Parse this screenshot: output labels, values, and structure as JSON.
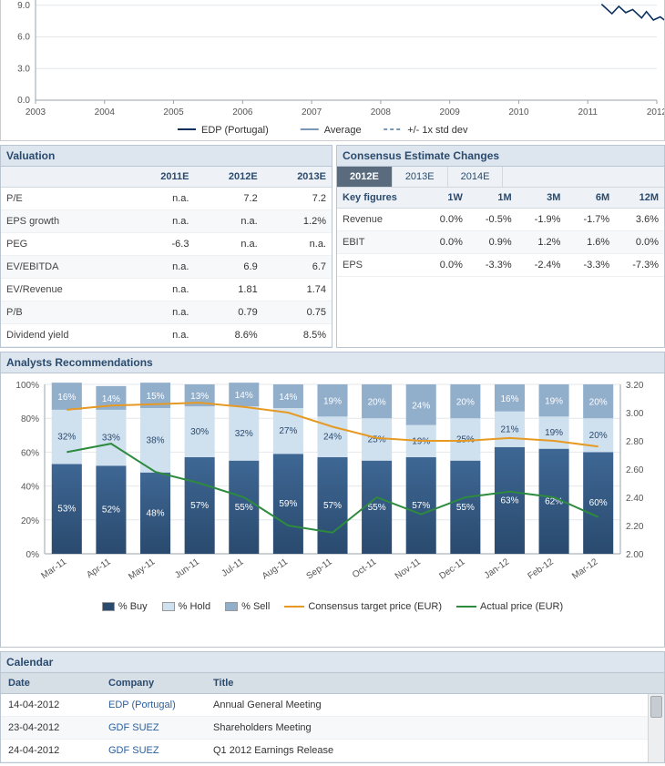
{
  "top_chart": {
    "type": "line",
    "ylim": [
      0,
      9.5
    ],
    "yticks": [
      0.0,
      3.0,
      6.0,
      9.0
    ],
    "xticks": [
      "2003",
      "2004",
      "2005",
      "2006",
      "2007",
      "2008",
      "2009",
      "2010",
      "2011",
      "2012"
    ],
    "background_color": "#ffffff",
    "grid_color": "#e4e7ea",
    "axis_color": "#9aa3ac",
    "text_color": "#555555",
    "series": [
      {
        "name": "EDP (Portugal)",
        "color": "#0b2f5c",
        "style": "solid",
        "points": [
          [
            8.2,
            9.1
          ],
          [
            8.35,
            8.2
          ],
          [
            8.45,
            8.9
          ],
          [
            8.55,
            8.3
          ],
          [
            8.65,
            8.6
          ],
          [
            8.78,
            7.8
          ],
          [
            8.85,
            8.4
          ],
          [
            8.95,
            7.6
          ],
          [
            9.05,
            7.9
          ],
          [
            9.15,
            7.4
          ],
          [
            9.25,
            7.7
          ],
          [
            9.35,
            7.2
          ],
          [
            9.45,
            7.7
          ],
          [
            9.55,
            7.2
          ],
          [
            9.62,
            7.4
          ],
          [
            9.72,
            7.0
          ],
          [
            9.82,
            7.4
          ],
          [
            9.9,
            7.1
          ],
          [
            9.98,
            7.3
          ]
        ]
      }
    ],
    "legend": [
      {
        "label": "EDP (Portugal)",
        "color": "#0b2f5c",
        "style": "solid"
      },
      {
        "label": "Average",
        "color": "#7a97b8",
        "style": "solid"
      },
      {
        "label": "+/- 1x std dev",
        "color": "#7a97b8",
        "style": "dash"
      }
    ]
  },
  "valuation": {
    "title": "Valuation",
    "columns": [
      "",
      "2011E",
      "2012E",
      "2013E"
    ],
    "rows": [
      [
        "P/E",
        "n.a.",
        "7.2",
        "7.2"
      ],
      [
        "EPS growth",
        "n.a.",
        "n.a.",
        "1.2%"
      ],
      [
        "PEG",
        "-6.3",
        "n.a.",
        "n.a."
      ],
      [
        "EV/EBITDA",
        "n.a.",
        "6.9",
        "6.7"
      ],
      [
        "EV/Revenue",
        "n.a.",
        "1.81",
        "1.74"
      ],
      [
        "P/B",
        "n.a.",
        "0.79",
        "0.75"
      ],
      [
        "Dividend yield",
        "n.a.",
        "8.6%",
        "8.5%"
      ]
    ]
  },
  "consensus": {
    "title": "Consensus Estimate Changes",
    "tabs": [
      "2012E",
      "2013E",
      "2014E"
    ],
    "active_tab": 0,
    "kf_label": "Key figures",
    "columns": [
      "",
      "1W",
      "1M",
      "3M",
      "6M",
      "12M"
    ],
    "rows": [
      [
        "Revenue",
        "0.0%",
        "-0.5%",
        "-1.9%",
        "-1.7%",
        "3.6%"
      ],
      [
        "EBIT",
        "0.0%",
        "0.9%",
        "1.2%",
        "1.6%",
        "0.0%"
      ],
      [
        "EPS",
        "0.0%",
        "-3.3%",
        "-2.4%",
        "-3.3%",
        "-7.3%"
      ]
    ]
  },
  "recommendations": {
    "title": "Analysts Recommendations",
    "type": "stacked-bar-with-lines",
    "categories": [
      "Mar-11",
      "Apr-11",
      "May-11",
      "Jun-11",
      "Jul-11",
      "Aug-11",
      "Sep-11",
      "Oct-11",
      "Nov-11",
      "Dec-11",
      "Jan-12",
      "Feb-12",
      "Mar-12"
    ],
    "left_axis": {
      "min": 0,
      "max": 100,
      "ticks": [
        0,
        20,
        40,
        60,
        80,
        100
      ],
      "format": "%"
    },
    "right_axis": {
      "min": 2.0,
      "max": 3.2,
      "ticks": [
        2.0,
        2.2,
        2.4,
        2.6,
        2.8,
        3.0,
        3.2
      ]
    },
    "background_color": "#ffffff",
    "grid_color": "#e4e7ea",
    "axis_color": "#9aa3ac",
    "bar_width": 0.68,
    "buy": {
      "color": "#2a4a6e",
      "gradient_to": "#3e6794",
      "values": [
        53,
        52,
        48,
        57,
        55,
        59,
        57,
        55,
        57,
        55,
        63,
        62,
        60
      ],
      "label_color": "#ffffff"
    },
    "hold": {
      "color": "#cfe0ef",
      "values": [
        32,
        33,
        38,
        30,
        32,
        27,
        24,
        25,
        19,
        25,
        21,
        19,
        20
      ],
      "label_hidden": [
        false,
        false,
        false,
        false,
        false,
        false,
        false,
        false,
        false,
        false,
        false,
        false,
        false
      ]
    },
    "sell": {
      "color": "#91aecb",
      "values": [
        16,
        14,
        15,
        13,
        14,
        14,
        19,
        20,
        24,
        20,
        16,
        19,
        20
      ],
      "label_color": "#ffffff"
    },
    "target_line": {
      "color": "#e69a24",
      "width": 2,
      "values": [
        3.02,
        3.05,
        3.06,
        3.07,
        3.04,
        3.0,
        2.9,
        2.82,
        2.8,
        2.8,
        2.82,
        2.8,
        2.76
      ]
    },
    "actual_line": {
      "color": "#2d8a3e",
      "width": 2,
      "values": [
        2.72,
        2.78,
        2.58,
        2.5,
        2.4,
        2.2,
        2.15,
        2.4,
        2.28,
        2.4,
        2.44,
        2.4,
        2.26
      ]
    },
    "legend": [
      {
        "label": "% Buy",
        "swatch": "#2a4a6e"
      },
      {
        "label": "% Hold",
        "swatch": "#cfe0ef"
      },
      {
        "label": "% Sell",
        "swatch": "#91aecb"
      },
      {
        "label": "Consensus target price (EUR)",
        "line": "#e69a24"
      },
      {
        "label": "Actual price (EUR)",
        "line": "#2d8a3e"
      }
    ]
  },
  "calendar": {
    "title": "Calendar",
    "columns": [
      "Date",
      "Company",
      "Title"
    ],
    "rows": [
      {
        "date": "14-04-2012",
        "company": "EDP (Portugal)",
        "title": "Annual General Meeting"
      },
      {
        "date": "23-04-2012",
        "company": "GDF SUEZ",
        "title": "Shareholders Meeting"
      },
      {
        "date": "24-04-2012",
        "company": "GDF SUEZ",
        "title": "Q1 2012 Earnings Release"
      }
    ]
  }
}
